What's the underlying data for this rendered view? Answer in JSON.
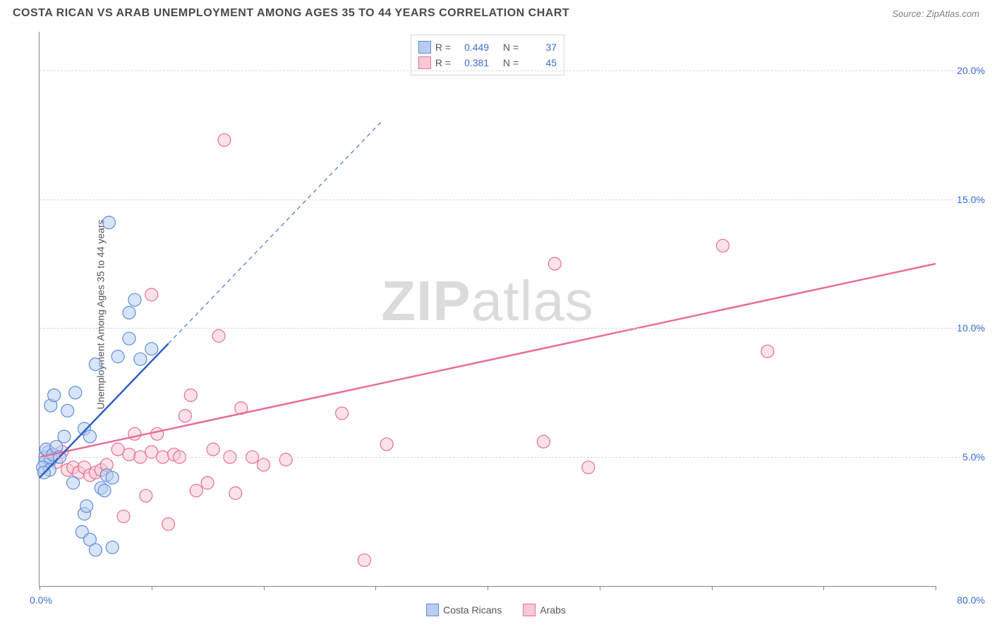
{
  "title": "COSTA RICAN VS ARAB UNEMPLOYMENT AMONG AGES 35 TO 44 YEARS CORRELATION CHART",
  "source": "Source: ZipAtlas.com",
  "y_axis_label": "Unemployment Among Ages 35 to 44 years",
  "watermark_zip": "ZIP",
  "watermark_atlas": "atlas",
  "chart": {
    "type": "scatter",
    "x_min": 0,
    "x_max": 80,
    "y_min": 0,
    "y_max": 21.5,
    "y_gridlines": [
      5,
      10,
      15,
      20
    ],
    "y_tick_labels": [
      "5.0%",
      "10.0%",
      "15.0%",
      "20.0%"
    ],
    "x_ticks": [
      0,
      10,
      20,
      30,
      40,
      50,
      60,
      70,
      80
    ],
    "x_origin_label": "0.0%",
    "x_max_label": "80.0%",
    "background_color": "#ffffff",
    "grid_color": "#d8d8d8",
    "axis_color": "#888888",
    "tick_label_color": "#3b6fd6",
    "marker_radius": 9,
    "marker_stroke_width": 1.2,
    "trend_line_width": 2.5,
    "dashed_extension": true
  },
  "series": {
    "costa_ricans": {
      "label": "Costa Ricans",
      "fill": "#b8cdf0",
      "stroke": "#5f8dd9",
      "fill_opacity": 0.55,
      "r_value": "0.449",
      "n_value": "37",
      "trend": {
        "x1": 0,
        "y1": 4.2,
        "x2": 11.5,
        "y2": 9.4,
        "dash_to_x": 30.5,
        "dash_to_y": 18.0
      },
      "points": [
        [
          0.5,
          5.0
        ],
        [
          0.5,
          4.8
        ],
        [
          0.8,
          5.2
        ],
        [
          1.0,
          4.9
        ],
        [
          0.3,
          4.6
        ],
        [
          0.6,
          5.3
        ],
        [
          1.2,
          5.1
        ],
        [
          0.9,
          4.5
        ],
        [
          1.5,
          5.4
        ],
        [
          0.4,
          4.4
        ],
        [
          1.8,
          5.0
        ],
        [
          1.0,
          7.0
        ],
        [
          1.3,
          7.4
        ],
        [
          2.2,
          5.8
        ],
        [
          2.5,
          6.8
        ],
        [
          3.0,
          4.0
        ],
        [
          3.2,
          7.5
        ],
        [
          4.0,
          6.1
        ],
        [
          4.5,
          5.8
        ],
        [
          5.5,
          3.8
        ],
        [
          5.8,
          3.7
        ],
        [
          5.0,
          8.6
        ],
        [
          6.0,
          4.3
        ],
        [
          6.5,
          4.2
        ],
        [
          7.0,
          8.9
        ],
        [
          8.0,
          9.6
        ],
        [
          9.0,
          8.8
        ],
        [
          10.0,
          9.2
        ],
        [
          6.2,
          14.1
        ],
        [
          8.5,
          11.1
        ],
        [
          8.0,
          10.6
        ],
        [
          3.8,
          2.1
        ],
        [
          4.5,
          1.8
        ],
        [
          5.0,
          1.4
        ],
        [
          6.5,
          1.5
        ],
        [
          4.0,
          2.8
        ],
        [
          4.2,
          3.1
        ]
      ]
    },
    "arabs": {
      "label": "Arabs",
      "fill": "#f7c8d6",
      "stroke": "#e76f94",
      "fill_opacity": 0.55,
      "r_value": "0.381",
      "n_value": "45",
      "trend": {
        "x1": 0,
        "y1": 5.0,
        "x2": 80,
        "y2": 12.5
      },
      "points": [
        [
          0.8,
          5.0
        ],
        [
          1.5,
          4.8
        ],
        [
          2.0,
          5.2
        ],
        [
          2.5,
          4.5
        ],
        [
          3.0,
          4.6
        ],
        [
          3.5,
          4.4
        ],
        [
          4.0,
          4.6
        ],
        [
          4.5,
          4.3
        ],
        [
          5.0,
          4.4
        ],
        [
          5.5,
          4.5
        ],
        [
          6.0,
          4.7
        ],
        [
          7.0,
          5.3
        ],
        [
          8.0,
          5.1
        ],
        [
          8.5,
          5.9
        ],
        [
          9.0,
          5.0
        ],
        [
          9.5,
          3.5
        ],
        [
          10.0,
          5.2
        ],
        [
          10.5,
          5.9
        ],
        [
          11.0,
          5.0
        ],
        [
          12.0,
          5.1
        ],
        [
          12.5,
          5.0
        ],
        [
          13.0,
          6.6
        ],
        [
          13.5,
          7.4
        ],
        [
          10.0,
          11.3
        ],
        [
          14.0,
          3.7
        ],
        [
          15.0,
          4.0
        ],
        [
          15.5,
          5.3
        ],
        [
          16.0,
          9.7
        ],
        [
          17.0,
          5.0
        ],
        [
          17.5,
          3.6
        ],
        [
          18.0,
          6.9
        ],
        [
          19.0,
          5.0
        ],
        [
          16.5,
          17.3
        ],
        [
          7.5,
          2.7
        ],
        [
          11.5,
          2.4
        ],
        [
          27.0,
          6.7
        ],
        [
          29.0,
          1.0
        ],
        [
          31.0,
          5.5
        ],
        [
          45.0,
          5.6
        ],
        [
          46.0,
          12.5
        ],
        [
          49.0,
          4.6
        ],
        [
          61.0,
          13.2
        ],
        [
          65.0,
          9.1
        ],
        [
          20.0,
          4.7
        ],
        [
          22.0,
          4.9
        ]
      ]
    }
  },
  "stats_legend": {
    "rows": [
      {
        "series": "costa_ricans",
        "r_label": "R =",
        "n_label": "N ="
      },
      {
        "series": "arabs",
        "r_label": "R =",
        "n_label": "N ="
      }
    ]
  }
}
